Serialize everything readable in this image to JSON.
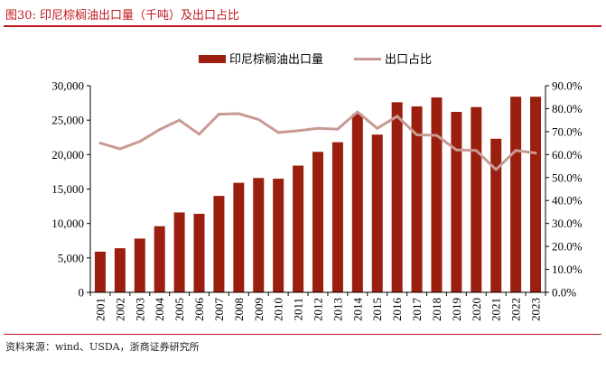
{
  "figure": {
    "title": "图30:   印尼棕榈油出口量（千吨）及出口占比",
    "source": "资料来源：wind、USDA，浙商证券研究所"
  },
  "chart_data": {
    "type": "bar",
    "categories": [
      "2001",
      "2002",
      "2003",
      "2004",
      "2005",
      "2006",
      "2007",
      "2008",
      "2009",
      "2010",
      "2011",
      "2012",
      "2013",
      "2014",
      "2015",
      "2016",
      "2017",
      "2018",
      "2019",
      "2020",
      "2021",
      "2022",
      "2023"
    ],
    "series": [
      {
        "name": "印尼棕榈油出口量",
        "type": "bar",
        "axis": "left",
        "color": "#9b1f0e",
        "values": [
          5900,
          6400,
          7800,
          9600,
          11600,
          11400,
          14000,
          15900,
          16600,
          16500,
          18400,
          20400,
          21800,
          25900,
          22900,
          27600,
          27000,
          28300,
          26200,
          26900,
          22300,
          28400,
          28400
        ]
      },
      {
        "name": "出口占比",
        "type": "line",
        "axis": "right",
        "color": "#c99a94",
        "values": [
          65.0,
          62.5,
          65.7,
          70.9,
          75.0,
          68.9,
          77.6,
          77.8,
          75.3,
          69.6,
          70.4,
          71.4,
          71.1,
          78.6,
          71.4,
          76.7,
          68.6,
          68.4,
          62.0,
          61.8,
          53.5,
          61.8,
          60.7
        ]
      }
    ],
    "y_left": {
      "lim": [
        0,
        30000
      ],
      "ticks": [
        "0",
        "5,000",
        "10,000",
        "15,000",
        "20,000",
        "25,000",
        "30,000"
      ]
    },
    "y_right": {
      "lim": [
        0,
        90
      ],
      "ticks": [
        "0.0%",
        "10.0%",
        "20.0%",
        "30.0%",
        "40.0%",
        "50.0%",
        "60.0%",
        "70.0%",
        "80.0%",
        "90.0%"
      ]
    },
    "legend_position": "top-center",
    "grid": false
  }
}
